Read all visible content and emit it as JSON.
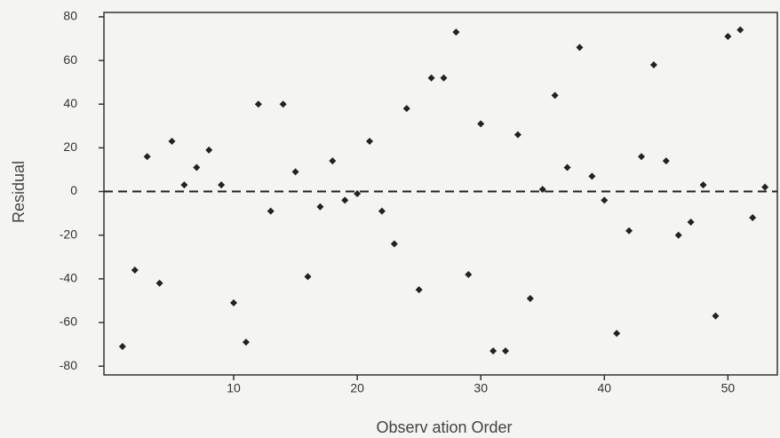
{
  "chart_data": {
    "type": "scatter",
    "x_label": "Observ ation Order",
    "y_label": "Residual",
    "x": [
      1,
      2,
      3,
      4,
      5,
      6,
      7,
      8,
      9,
      10,
      11,
      12,
      13,
      14,
      15,
      16,
      17,
      18,
      19,
      20,
      21,
      22,
      23,
      24,
      25,
      26,
      27,
      28,
      29,
      30,
      31,
      32,
      33,
      34,
      35,
      36,
      37,
      38,
      39,
      40,
      41,
      42,
      43,
      44,
      45,
      46,
      47,
      48,
      49,
      50,
      51,
      52,
      53
    ],
    "values": [
      -71,
      -36,
      16,
      -42,
      23,
      3,
      11,
      19,
      3,
      -51,
      -69,
      40,
      -9,
      40,
      9,
      -39,
      -7,
      14,
      -4,
      -1,
      23,
      -9,
      -24,
      38,
      -45,
      52,
      52,
      73,
      -38,
      31,
      -73,
      -73,
      26,
      -49,
      1,
      44,
      11,
      66,
      7,
      -4,
      -65,
      -18,
      16,
      58,
      14,
      -20,
      -14,
      3,
      -57,
      71,
      74,
      -12,
      2
    ],
    "color": "#222222",
    "xlim": [
      -0.5,
      54
    ],
    "xticks": [
      10,
      20,
      30,
      40,
      50
    ],
    "ylim": [
      -84,
      82
    ],
    "yticks": [
      -80,
      -60,
      -40,
      -20,
      0,
      20,
      40,
      60,
      80
    ],
    "reference_line": 0
  }
}
